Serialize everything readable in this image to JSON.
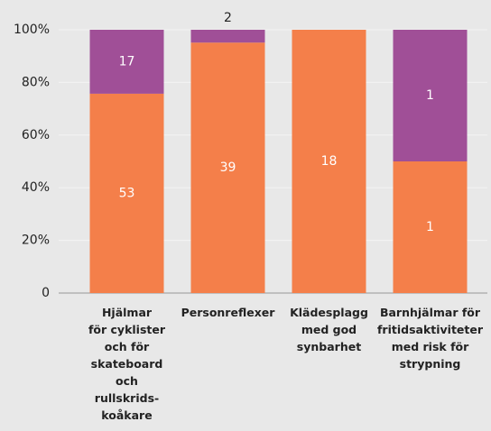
{
  "chart_data": {
    "type": "stacked_bar_percent",
    "categories": [
      "Hjälmar\nför cyklister\noch för\nskateboard\noch\nrullskrids-\nkoåkare",
      "Personreflexer",
      "Klädesplagg\nmed god\nsynbarhet",
      "Barnhjälmar för\nfritidsaktiviteter\nmed risk för\nstrypning"
    ],
    "series": [
      {
        "color": "#f47f4a",
        "values": [
          53,
          39,
          18,
          1
        ]
      },
      {
        "color": "#a04f97",
        "values": [
          17,
          2,
          0,
          1
        ]
      }
    ],
    "ylim": [
      0,
      100
    ],
    "yticks": [
      0,
      {
        "value": 20,
        "label": "20%"
      },
      {
        "value": 40,
        "label": "40%"
      },
      {
        "value": 60,
        "label": "60%"
      },
      {
        "value": 80,
        "label": "80%"
      },
      {
        "value": 100,
        "label": "100%"
      }
    ],
    "grid": true
  }
}
